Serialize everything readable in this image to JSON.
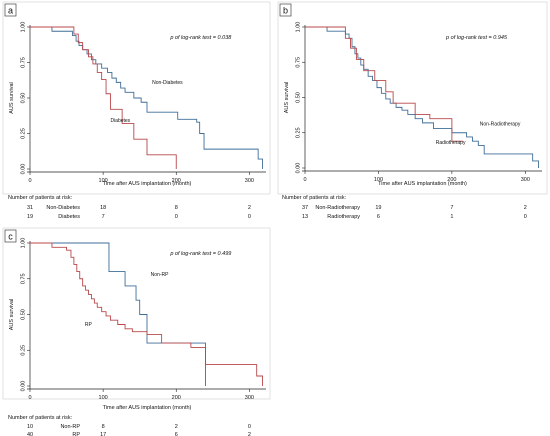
{
  "chart_data": [
    {
      "type": "line",
      "step": true,
      "panel_label": "a",
      "annotation": "p of log-rank test = 0.038",
      "xlabel": "Time after AUS implantation (month)",
      "ylabel": "AUS survival",
      "xlim": [
        0,
        320
      ],
      "ylim": [
        0,
        1
      ],
      "xticks": [
        0,
        100,
        200,
        300
      ],
      "yticks": [
        0,
        0.25,
        0.5,
        0.75,
        1
      ],
      "ytick_labels": [
        "0.00",
        "0.25",
        "0.50",
        "0.75",
        "1.00"
      ],
      "grid": false,
      "legend": "none",
      "series": [
        {
          "name": "Non-Diabetes",
          "color": "#3f6e99",
          "x": [
            0,
            30,
            58,
            63,
            67,
            72,
            78,
            84,
            90,
            98,
            106,
            112,
            118,
            124,
            130,
            142,
            152,
            160,
            180,
            202,
            228,
            232,
            238,
            260,
            283,
            312,
            318
          ],
          "y": [
            1.0,
            0.97,
            0.94,
            0.9,
            0.87,
            0.84,
            0.81,
            0.77,
            0.74,
            0.71,
            0.68,
            0.64,
            0.61,
            0.57,
            0.54,
            0.5,
            0.47,
            0.4,
            0.4,
            0.35,
            0.33,
            0.25,
            0.14,
            0.14,
            0.14,
            0.07,
            0.0
          ]
        },
        {
          "name": "Diabetes",
          "color": "#b8484a",
          "x": [
            0,
            60,
            66,
            72,
            80,
            86,
            92,
            98,
            104,
            110,
            126,
            142,
            160,
            170,
            200
          ],
          "y": [
            1.0,
            0.95,
            0.89,
            0.84,
            0.79,
            0.74,
            0.68,
            0.63,
            0.53,
            0.42,
            0.32,
            0.21,
            0.1,
            0.1,
            0.0
          ]
        }
      ],
      "risk_table": {
        "title": "Number of patients at risk:",
        "rows": [
          {
            "label": "Non-Diabetes",
            "counts": [
              "31",
              "18",
              "8",
              "2"
            ]
          },
          {
            "label": "Diabetes",
            "counts": [
              "19",
              "7",
              "0",
              "0"
            ]
          }
        ]
      },
      "labels": [
        {
          "text": "Non-Diabetes",
          "x": 167,
          "y": 0.6
        },
        {
          "text": "Diabetes",
          "x": 110,
          "y": 0.33
        }
      ]
    },
    {
      "type": "line",
      "step": true,
      "panel_label": "b",
      "annotation": "p of log-rank test = 0.945",
      "xlabel": "Time after AUS implantation (month)",
      "ylabel": "AUS survival",
      "xlim": [
        0,
        320
      ],
      "ylim": [
        0,
        1
      ],
      "xticks": [
        0,
        100,
        200,
        300
      ],
      "yticks": [
        0,
        0.25,
        0.5,
        0.75,
        1
      ],
      "ytick_labels": [
        "0.00",
        "0.25",
        "0.50",
        "0.75",
        "1.00"
      ],
      "grid": false,
      "legend": "none",
      "series": [
        {
          "name": "Non-Radiotherapy",
          "color": "#3f6e99",
          "x": [
            0,
            30,
            55,
            60,
            64,
            68,
            72,
            76,
            80,
            86,
            92,
            98,
            104,
            110,
            116,
            124,
            132,
            140,
            150,
            160,
            175,
            200,
            220,
            228,
            236,
            244,
            280,
            310,
            318
          ],
          "y": [
            1.0,
            0.97,
            0.95,
            0.92,
            0.86,
            0.81,
            0.78,
            0.73,
            0.7,
            0.65,
            0.62,
            0.57,
            0.53,
            0.49,
            0.46,
            0.43,
            0.41,
            0.38,
            0.35,
            0.32,
            0.28,
            0.25,
            0.22,
            0.19,
            0.16,
            0.1,
            0.1,
            0.05,
            0.0
          ]
        },
        {
          "name": "Radiotherapy",
          "color": "#b8484a",
          "x": [
            0,
            55,
            62,
            70,
            80,
            95,
            110,
            120,
            135,
            150,
            170,
            200,
            215
          ],
          "y": [
            1.0,
            0.92,
            0.85,
            0.77,
            0.69,
            0.62,
            0.54,
            0.46,
            0.46,
            0.38,
            0.35,
            0.19,
            0.19
          ]
        }
      ],
      "risk_table": {
        "title": "Number of patients at risk:",
        "rows": [
          {
            "label": "Non-Radiotherapy",
            "counts": [
              "37",
              "19",
              "7",
              "2"
            ]
          },
          {
            "label": "Radiotherapy",
            "counts": [
              "13",
              "6",
              "1",
              "0"
            ]
          }
        ]
      },
      "labels": [
        {
          "text": "Non-Radiotherapy",
          "x": 238,
          "y": 0.3
        },
        {
          "text": "Radiotherapy",
          "x": 178,
          "y": 0.17
        }
      ]
    },
    {
      "type": "line",
      "step": true,
      "panel_label": "c",
      "annotation": "p of log-rank test = 0.499",
      "xlabel": "Time after AUS implantation (month)",
      "ylabel": "AUS survival",
      "xlim": [
        0,
        320
      ],
      "ylim": [
        0,
        1
      ],
      "xticks": [
        0,
        100,
        200,
        300
      ],
      "yticks": [
        0,
        0.25,
        0.5,
        0.75,
        1
      ],
      "ytick_labels": [
        "0.00",
        "0.25",
        "0.50",
        "0.75",
        "1.00"
      ],
      "grid": false,
      "legend": "none",
      "series": [
        {
          "name": "Non-RP",
          "color": "#3f6e99",
          "x": [
            0,
            108,
            130,
            145,
            150,
            160,
            176,
            240
          ],
          "y": [
            1.0,
            0.8,
            0.7,
            0.6,
            0.5,
            0.3,
            0.3,
            0.0
          ]
        },
        {
          "name": "RP",
          "color": "#b8484a",
          "x": [
            0,
            30,
            50,
            56,
            60,
            64,
            68,
            72,
            76,
            80,
            84,
            88,
            92,
            98,
            104,
            110,
            120,
            130,
            140,
            160,
            180,
            220,
            240,
            290,
            310,
            318
          ],
          "y": [
            1.0,
            0.97,
            0.95,
            0.9,
            0.85,
            0.8,
            0.75,
            0.7,
            0.67,
            0.64,
            0.61,
            0.58,
            0.55,
            0.52,
            0.49,
            0.46,
            0.43,
            0.4,
            0.38,
            0.36,
            0.3,
            0.27,
            0.15,
            0.15,
            0.07,
            0.0
          ]
        }
      ],
      "risk_table": {
        "title": "Number of patients at risk:",
        "rows": [
          {
            "label": "Non-RP",
            "counts": [
              "10",
              "8",
              "2",
              "0"
            ]
          },
          {
            "label": "RP",
            "counts": [
              "40",
              "17",
              "6",
              "2"
            ]
          }
        ]
      },
      "labels": [
        {
          "text": "Non-RP",
          "x": 165,
          "y": 0.77
        },
        {
          "text": "RP",
          "x": 75,
          "y": 0.42
        }
      ]
    }
  ]
}
